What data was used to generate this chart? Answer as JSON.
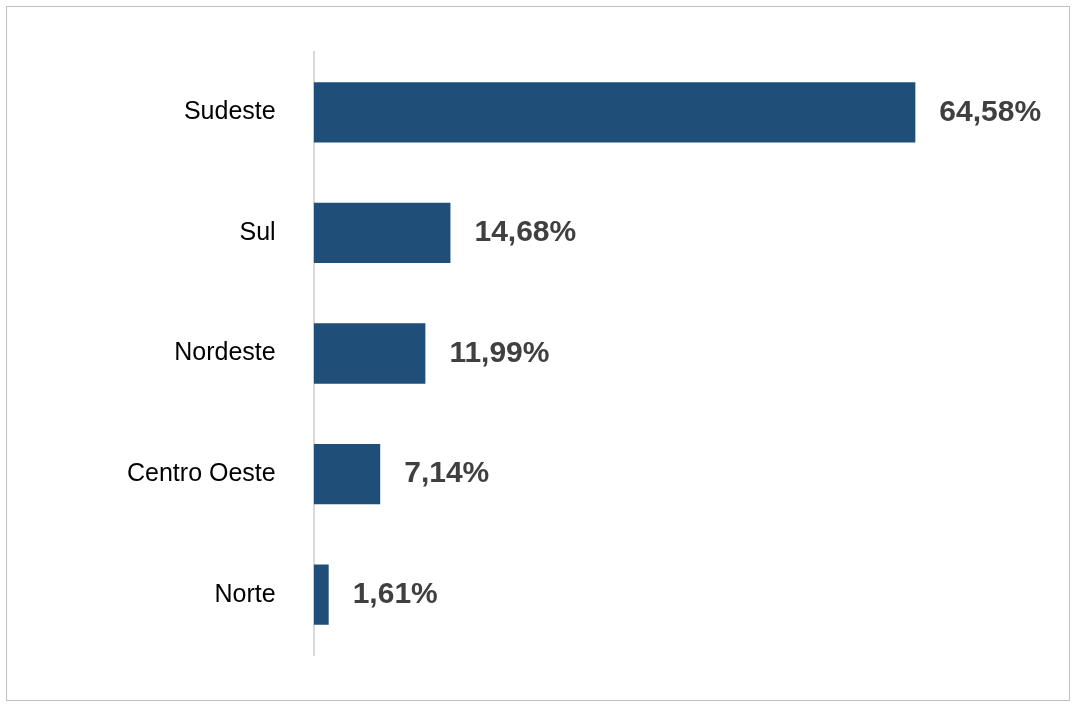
{
  "chart_data": {
    "type": "bar",
    "orientation": "horizontal",
    "categories": [
      "Sudeste",
      "Sul",
      "Nordeste",
      "Centro Oeste",
      "Norte"
    ],
    "values": [
      64.58,
      14.68,
      11.99,
      7.14,
      1.61
    ],
    "value_labels": [
      "64,58%",
      "14,68%",
      "11,99%",
      "7,14%",
      "1,61%"
    ],
    "color": "#1f4e79",
    "legend": false
  }
}
